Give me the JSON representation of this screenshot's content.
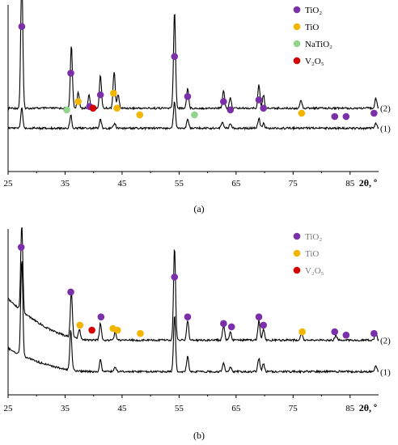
{
  "chart_data": [
    {
      "type": "line",
      "panel": "a",
      "caption": "(a)",
      "xlabel": "2θ, º",
      "xlim": [
        25,
        90
      ],
      "xticks": [
        25,
        35,
        45,
        55,
        65,
        75,
        85
      ],
      "legend": {
        "placement": "top-right",
        "entries": [
          {
            "name": "TiO₂",
            "color": "#7b2fa8"
          },
          {
            "name": "TiO",
            "color": "#f2b600"
          },
          {
            "name": "NaTiO₂",
            "color": "#8fd68a"
          },
          {
            "name": "V₂O₅",
            "color": "#d60000"
          }
        ]
      },
      "series": [
        {
          "name": "(2)",
          "baseline": 0.62,
          "peaks": [
            {
              "x": 27.4,
              "h": 0.8
            },
            {
              "x": 36.1,
              "h": 0.38
            },
            {
              "x": 37.3,
              "h": 0.1
            },
            {
              "x": 39.2,
              "h": 0.08
            },
            {
              "x": 41.2,
              "h": 0.2
            },
            {
              "x": 43.6,
              "h": 0.22
            },
            {
              "x": 44.3,
              "h": 0.08
            },
            {
              "x": 54.2,
              "h": 0.58
            },
            {
              "x": 56.5,
              "h": 0.12
            },
            {
              "x": 62.8,
              "h": 0.11
            },
            {
              "x": 64.0,
              "h": 0.06
            },
            {
              "x": 69.0,
              "h": 0.14
            },
            {
              "x": 69.8,
              "h": 0.08
            },
            {
              "x": 76.4,
              "h": 0.05
            },
            {
              "x": 89.5,
              "h": 0.06
            }
          ]
        },
        {
          "name": "(1)",
          "baseline": 0.74,
          "peaks": [
            {
              "x": 27.4,
              "h": 0.12
            },
            {
              "x": 36.0,
              "h": 0.08
            },
            {
              "x": 41.2,
              "h": 0.05
            },
            {
              "x": 43.7,
              "h": 0.03
            },
            {
              "x": 54.2,
              "h": 0.16
            },
            {
              "x": 56.5,
              "h": 0.05
            },
            {
              "x": 62.6,
              "h": 0.04
            },
            {
              "x": 64.0,
              "h": 0.03
            },
            {
              "x": 69.0,
              "h": 0.06
            },
            {
              "x": 69.8,
              "h": 0.03
            },
            {
              "x": 89.5,
              "h": 0.03
            }
          ]
        }
      ],
      "markers": [
        {
          "phase": "TiO₂",
          "x": 27.4,
          "y": 0.13
        },
        {
          "phase": "TiO₂",
          "x": 36.0,
          "y": 0.41
        },
        {
          "phase": "TiO₂",
          "x": 39.3,
          "y": 0.61
        },
        {
          "phase": "TiO₂",
          "x": 41.2,
          "y": 0.54
        },
        {
          "phase": "TiO₂",
          "x": 54.2,
          "y": 0.31
        },
        {
          "phase": "TiO₂",
          "x": 56.5,
          "y": 0.55
        },
        {
          "phase": "TiO₂",
          "x": 62.8,
          "y": 0.58
        },
        {
          "phase": "TiO₂",
          "x": 64.0,
          "y": 0.63
        },
        {
          "phase": "TiO₂",
          "x": 69.0,
          "y": 0.57
        },
        {
          "phase": "TiO₂",
          "x": 69.8,
          "y": 0.62
        },
        {
          "phase": "TiO₂",
          "x": 82.3,
          "y": 0.67
        },
        {
          "phase": "TiO₂",
          "x": 84.3,
          "y": 0.67
        },
        {
          "phase": "TiO₂",
          "x": 89.2,
          "y": 0.65
        },
        {
          "phase": "TiO",
          "x": 37.3,
          "y": 0.58
        },
        {
          "phase": "TiO",
          "x": 43.5,
          "y": 0.53
        },
        {
          "phase": "TiO",
          "x": 44.1,
          "y": 0.62
        },
        {
          "phase": "TiO",
          "x": 48.1,
          "y": 0.66
        },
        {
          "phase": "TiO",
          "x": 76.5,
          "y": 0.65
        },
        {
          "phase": "NaTiO₂",
          "x": 35.3,
          "y": 0.63
        },
        {
          "phase": "NaTiO₂",
          "x": 57.7,
          "y": 0.66
        },
        {
          "phase": "V₂O₅",
          "x": 39.9,
          "y": 0.62
        }
      ]
    },
    {
      "type": "line",
      "panel": "b",
      "caption": "(b)",
      "xlabel": "2θ, º",
      "xlim": [
        25,
        90
      ],
      "xticks": [
        25,
        35,
        45,
        55,
        65,
        75,
        85
      ],
      "legend": {
        "placement": "top-right",
        "entries": [
          {
            "name": "TiO₂",
            "color": "#7b2fa8"
          },
          {
            "name": "TiO",
            "color": "#f2b600"
          },
          {
            "name": "V₂O₅",
            "color": "#d60000"
          }
        ]
      },
      "series": [
        {
          "name": "(2)",
          "baseline": 0.67,
          "bg_start": 0.42,
          "peaks": [
            {
              "x": 27.4,
              "h": 0.52
            },
            {
              "x": 36.1,
              "h": 0.28
            },
            {
              "x": 37.5,
              "h": 0.06
            },
            {
              "x": 41.2,
              "h": 0.1
            },
            {
              "x": 43.8,
              "h": 0.05
            },
            {
              "x": 54.2,
              "h": 0.56
            },
            {
              "x": 56.5,
              "h": 0.12
            },
            {
              "x": 62.8,
              "h": 0.09
            },
            {
              "x": 64.0,
              "h": 0.05
            },
            {
              "x": 69.0,
              "h": 0.12
            },
            {
              "x": 69.8,
              "h": 0.07
            },
            {
              "x": 76.5,
              "h": 0.04
            },
            {
              "x": 82.5,
              "h": 0.03
            },
            {
              "x": 89.5,
              "h": 0.05
            }
          ]
        },
        {
          "name": "(1)",
          "baseline": 0.86,
          "bg_start": 0.72,
          "peaks": [
            {
              "x": 27.4,
              "h": 0.58
            },
            {
              "x": 36.0,
              "h": 0.24
            },
            {
              "x": 41.2,
              "h": 0.07
            },
            {
              "x": 43.8,
              "h": 0.03
            },
            {
              "x": 54.2,
              "h": 0.34
            },
            {
              "x": 56.5,
              "h": 0.09
            },
            {
              "x": 62.8,
              "h": 0.05
            },
            {
              "x": 64.0,
              "h": 0.03
            },
            {
              "x": 69.0,
              "h": 0.08
            },
            {
              "x": 69.8,
              "h": 0.05
            },
            {
              "x": 89.5,
              "h": 0.04
            }
          ]
        }
      ],
      "markers": [
        {
          "phase": "TiO₂",
          "x": 27.3,
          "y": 0.11
        },
        {
          "phase": "TiO₂",
          "x": 36.0,
          "y": 0.38
        },
        {
          "phase": "TiO₂",
          "x": 41.3,
          "y": 0.53
        },
        {
          "phase": "TiO₂",
          "x": 54.2,
          "y": 0.29
        },
        {
          "phase": "TiO₂",
          "x": 56.5,
          "y": 0.53
        },
        {
          "phase": "TiO₂",
          "x": 62.8,
          "y": 0.57
        },
        {
          "phase": "TiO₂",
          "x": 64.2,
          "y": 0.59
        },
        {
          "phase": "TiO₂",
          "x": 69.0,
          "y": 0.53
        },
        {
          "phase": "TiO₂",
          "x": 69.8,
          "y": 0.58
        },
        {
          "phase": "TiO₂",
          "x": 82.3,
          "y": 0.62
        },
        {
          "phase": "TiO₂",
          "x": 84.3,
          "y": 0.64
        },
        {
          "phase": "TiO₂",
          "x": 89.2,
          "y": 0.63
        },
        {
          "phase": "TiO",
          "x": 37.6,
          "y": 0.58
        },
        {
          "phase": "TiO",
          "x": 43.4,
          "y": 0.6
        },
        {
          "phase": "TiO",
          "x": 44.2,
          "y": 0.61
        },
        {
          "phase": "TiO",
          "x": 48.2,
          "y": 0.63
        },
        {
          "phase": "TiO",
          "x": 76.6,
          "y": 0.62
        },
        {
          "phase": "V₂O₅",
          "x": 39.7,
          "y": 0.61
        }
      ]
    }
  ]
}
